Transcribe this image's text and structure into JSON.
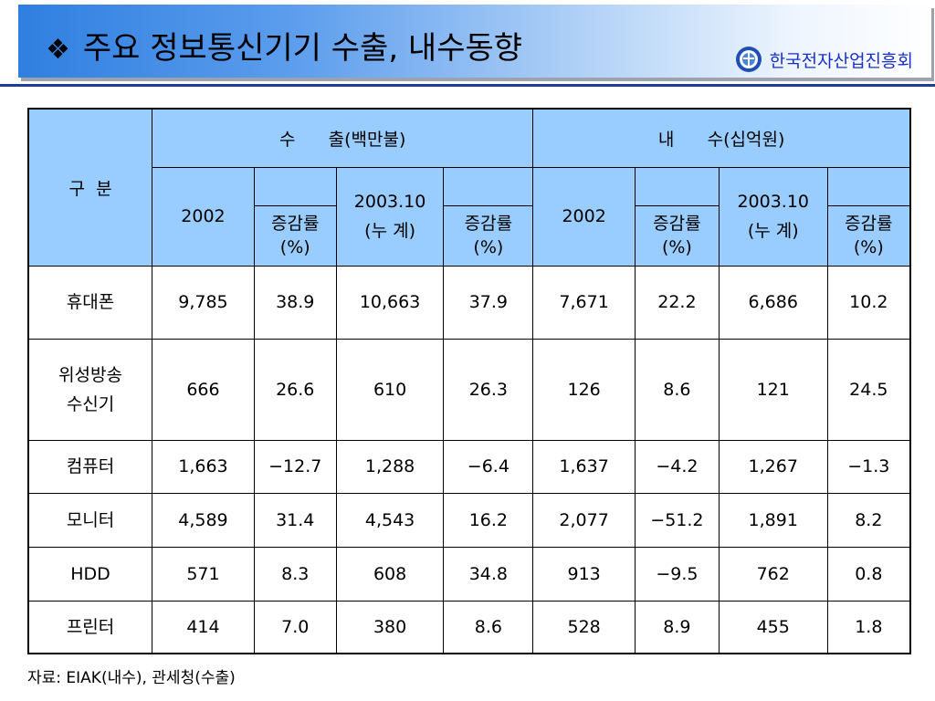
{
  "header": {
    "bullet": "❖",
    "title": "주요 정보통신기기 수출, 내수동향",
    "org": "한국전자산업진흥회",
    "org_logo_icon": "eiak-logo-icon"
  },
  "table": {
    "corner_label": "구  분",
    "export_group": "수      출(백만불)",
    "domestic_group": "내      수(십억원)",
    "col_2002": "2002",
    "col_2003_line1": "2003.10",
    "col_2003_line2": "(누 계)",
    "col_rate_line1": "증감률",
    "col_rate_line2": "(%)",
    "rows": [
      {
        "label": [
          "휴대폰"
        ],
        "values": [
          "9,785",
          "38.9",
          "10,663",
          "37.9",
          "7,671",
          "22.2",
          "6,686",
          "10.2"
        ]
      },
      {
        "label": [
          "위성방송",
          "수신기"
        ],
        "values": [
          "666",
          "26.6",
          "610",
          "26.3",
          "126",
          "8.6",
          "121",
          "24.5"
        ]
      },
      {
        "label": [
          "컴퓨터"
        ],
        "values": [
          "1,663",
          "−12.7",
          "1,288",
          "−6.4",
          "1,637",
          "−4.2",
          "1,267",
          "−1.3"
        ]
      },
      {
        "label": [
          "모니터"
        ],
        "values": [
          "4,589",
          "31.4",
          "4,543",
          "16.2",
          "2,077",
          "−51.2",
          "1,891",
          "8.2"
        ]
      },
      {
        "label": [
          "HDD"
        ],
        "values": [
          "571",
          "8.3",
          "608",
          "34.8",
          "913",
          "−9.5",
          "762",
          "0.8"
        ]
      },
      {
        "label": [
          "프린터"
        ],
        "values": [
          "414",
          "7.0",
          "380",
          "8.6",
          "528",
          "8.9",
          "455",
          "1.8"
        ]
      }
    ]
  },
  "footer": {
    "source": "자료: EIAK(내수), 관세청(수출)"
  },
  "colors": {
    "header_fill": "#99ccff",
    "org_text": "#1a2fc9",
    "rule": "#1f3c99"
  }
}
